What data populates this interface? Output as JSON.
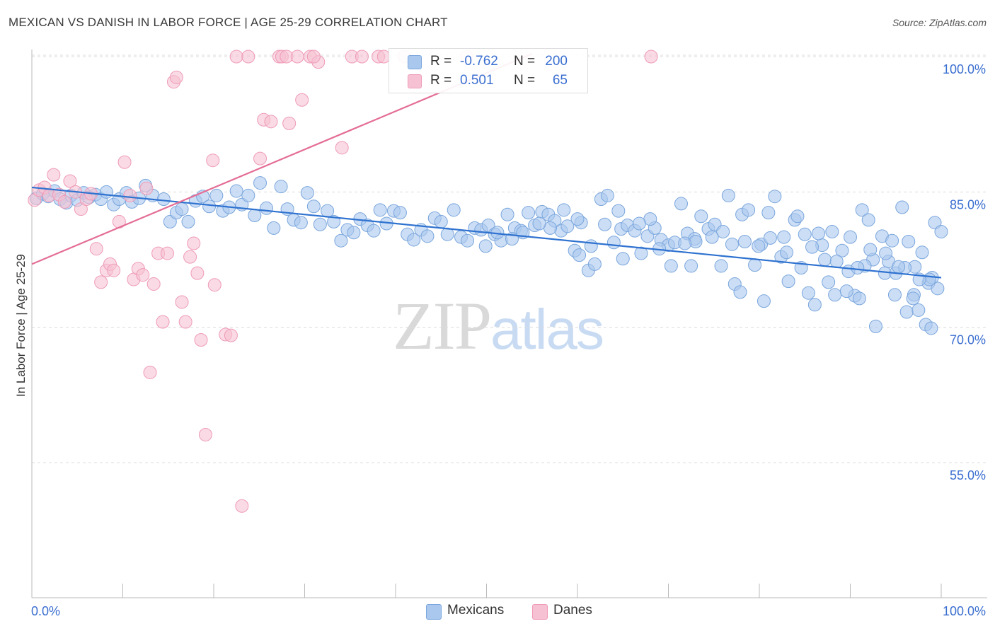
{
  "header": {
    "title": "MEXICAN VS DANISH IN LABOR FORCE | AGE 25-29 CORRELATION CHART",
    "source": "Source: ZipAtlas.com"
  },
  "watermark": {
    "zip": "ZIP",
    "atlas": "atlas"
  },
  "legend": {
    "r_label": "R =",
    "n_label": "N =",
    "mexicans": {
      "r": "-0.762",
      "n": "200"
    },
    "danes": {
      "r": "0.501",
      "n": "65"
    }
  },
  "bottom_legend": {
    "mexicans": "Mexicans",
    "danes": "Danes"
  },
  "colors": {
    "mexicans_fill": "#aac8ee",
    "mexicans_stroke": "#7aa6dd",
    "mexicans_line": "#2f72d0",
    "danes_fill": "#f6c1d2",
    "danes_stroke": "#ee9bb7",
    "danes_line": "#e46d96",
    "tick_label": "#3b6fd0"
  },
  "chart_data": {
    "type": "scatter",
    "title": "MEXICAN VS DANISH IN LABOR FORCE | AGE 25-29 CORRELATION CHART",
    "xlabel": "",
    "ylabel": "In Labor Force | Age 25-29",
    "xlim": [
      0,
      100
    ],
    "ylim": [
      40,
      101.5
    ],
    "x_tick_labels": [
      "0.0%",
      "100.0%"
    ],
    "y_ticks": [
      55,
      70,
      85,
      100
    ],
    "y_tick_labels": [
      "55.0%",
      "70.0%",
      "85.0%",
      "100.0%"
    ],
    "grid": true,
    "legend_position": "top-center",
    "series": [
      {
        "name": "Mexicans",
        "r": -0.762,
        "n": 200,
        "trend": {
          "x": [
            0,
            100
          ],
          "y": [
            85.5,
            75.5
          ]
        },
        "points": [
          [
            0.5,
            84.3
          ],
          [
            1.2,
            84.8
          ],
          [
            1.8,
            84.5
          ],
          [
            2.5,
            85.1
          ],
          [
            3.1,
            84.2
          ],
          [
            3.8,
            83.8
          ],
          [
            4.3,
            84.6
          ],
          [
            5.0,
            84.1
          ],
          [
            5.7,
            84.9
          ],
          [
            6.3,
            84.4
          ],
          [
            7.0,
            84.7
          ],
          [
            7.6,
            84.2
          ],
          [
            8.2,
            85.0
          ],
          [
            9.0,
            83.6
          ],
          [
            9.6,
            84.2
          ],
          [
            10.4,
            84.9
          ],
          [
            11.0,
            83.9
          ],
          [
            11.8,
            84.3
          ],
          [
            12.5,
            85.7
          ],
          [
            13.3,
            84.6
          ],
          [
            14.5,
            84.2
          ],
          [
            15.2,
            81.7
          ],
          [
            15.9,
            82.7
          ],
          [
            16.5,
            83.1
          ],
          [
            17.2,
            81.7
          ],
          [
            18.0,
            84.0
          ],
          [
            18.8,
            84.5
          ],
          [
            19.5,
            83.4
          ],
          [
            20.3,
            84.6
          ],
          [
            21.0,
            82.9
          ],
          [
            21.7,
            83.3
          ],
          [
            22.5,
            85.1
          ],
          [
            23.1,
            83.6
          ],
          [
            23.8,
            84.6
          ],
          [
            24.5,
            82.4
          ],
          [
            25.1,
            86.0
          ],
          [
            25.8,
            83.2
          ],
          [
            26.6,
            81.0
          ],
          [
            27.4,
            85.6
          ],
          [
            28.1,
            83.1
          ],
          [
            28.8,
            81.9
          ],
          [
            29.6,
            81.6
          ],
          [
            30.3,
            84.9
          ],
          [
            31.0,
            83.4
          ],
          [
            31.7,
            81.4
          ],
          [
            32.5,
            82.9
          ],
          [
            33.2,
            81.7
          ],
          [
            34.0,
            79.6
          ],
          [
            34.7,
            80.8
          ],
          [
            35.4,
            80.5
          ],
          [
            36.1,
            82.0
          ],
          [
            36.9,
            81.3
          ],
          [
            37.6,
            80.7
          ],
          [
            38.3,
            83.0
          ],
          [
            39.0,
            81.5
          ],
          [
            39.8,
            82.9
          ],
          [
            40.5,
            82.7
          ],
          [
            41.3,
            80.3
          ],
          [
            42.0,
            79.7
          ],
          [
            42.8,
            80.8
          ],
          [
            43.5,
            80.1
          ],
          [
            44.3,
            82.1
          ],
          [
            45.0,
            81.7
          ],
          [
            45.7,
            80.3
          ],
          [
            46.4,
            83.0
          ],
          [
            47.2,
            80.0
          ],
          [
            47.9,
            79.6
          ],
          [
            48.7,
            81.0
          ],
          [
            49.4,
            80.8
          ],
          [
            50.2,
            81.3
          ],
          [
            50.9,
            80.3
          ],
          [
            51.6,
            79.6
          ],
          [
            52.3,
            82.5
          ],
          [
            53.1,
            81.0
          ],
          [
            53.8,
            80.7
          ],
          [
            54.6,
            82.7
          ],
          [
            55.3,
            81.3
          ],
          [
            56.1,
            82.8
          ],
          [
            56.8,
            82.5
          ],
          [
            57.5,
            81.8
          ],
          [
            58.2,
            80.7
          ],
          [
            58.9,
            81.2
          ],
          [
            59.7,
            78.5
          ],
          [
            60.4,
            81.6
          ],
          [
            61.2,
            76.3
          ],
          [
            61.9,
            77.0
          ],
          [
            62.6,
            84.2
          ],
          [
            63.3,
            84.6
          ],
          [
            64.0,
            79.4
          ],
          [
            64.8,
            80.9
          ],
          [
            65.5,
            81.3
          ],
          [
            66.3,
            80.7
          ],
          [
            67.0,
            78.2
          ],
          [
            67.7,
            80.1
          ],
          [
            68.5,
            81.0
          ],
          [
            69.2,
            79.7
          ],
          [
            70.0,
            79.1
          ],
          [
            70.7,
            79.4
          ],
          [
            71.4,
            83.7
          ],
          [
            72.1,
            80.4
          ],
          [
            72.9,
            79.8
          ],
          [
            73.6,
            82.3
          ],
          [
            74.4,
            80.9
          ],
          [
            75.1,
            81.4
          ],
          [
            75.8,
            76.8
          ],
          [
            76.6,
            84.6
          ],
          [
            77.3,
            74.8
          ],
          [
            78.1,
            82.5
          ],
          [
            78.8,
            83.0
          ],
          [
            79.5,
            76.9
          ],
          [
            80.2,
            79.2
          ],
          [
            81.0,
            82.7
          ],
          [
            81.7,
            84.5
          ],
          [
            82.4,
            77.8
          ],
          [
            83.2,
            75.1
          ],
          [
            83.9,
            81.9
          ],
          [
            84.6,
            76.6
          ],
          [
            85.4,
            73.8
          ],
          [
            86.1,
            72.5
          ],
          [
            86.9,
            79.1
          ],
          [
            87.6,
            75.0
          ],
          [
            88.3,
            73.6
          ],
          [
            89.1,
            78.5
          ],
          [
            89.8,
            76.2
          ],
          [
            90.5,
            73.5
          ],
          [
            91.3,
            83.0
          ],
          [
            92.0,
            81.9
          ],
          [
            92.8,
            70.1
          ],
          [
            93.5,
            80.1
          ],
          [
            94.2,
            77.3
          ],
          [
            94.9,
            73.6
          ],
          [
            95.7,
            83.3
          ],
          [
            96.4,
            79.5
          ],
          [
            97.1,
            76.7
          ],
          [
            97.9,
            78.3
          ],
          [
            98.6,
            74.9
          ],
          [
            99.3,
            81.6
          ],
          [
            100.0,
            80.6
          ],
          [
            60.2,
            78.0
          ],
          [
            65.0,
            77.6
          ],
          [
            72.5,
            76.8
          ],
          [
            77.9,
            73.9
          ],
          [
            80.5,
            72.9
          ],
          [
            83.0,
            78.3
          ],
          [
            85.0,
            80.3
          ],
          [
            87.2,
            77.5
          ],
          [
            88.5,
            77.3
          ],
          [
            90.0,
            80.0
          ],
          [
            91.0,
            73.2
          ],
          [
            92.5,
            77.5
          ],
          [
            93.8,
            76.0
          ],
          [
            95.0,
            76.0
          ],
          [
            96.2,
            71.7
          ],
          [
            97.0,
            73.6
          ],
          [
            97.5,
            71.9
          ],
          [
            98.3,
            70.3
          ],
          [
            98.9,
            69.9
          ],
          [
            99.6,
            74.3
          ],
          [
            99.0,
            75.5
          ],
          [
            98.7,
            75.3
          ],
          [
            97.6,
            75.3
          ],
          [
            96.9,
            73.2
          ],
          [
            96.0,
            76.6
          ],
          [
            95.3,
            76.7
          ],
          [
            94.6,
            79.6
          ],
          [
            93.9,
            78.2
          ],
          [
            92.2,
            78.6
          ],
          [
            91.6,
            76.8
          ],
          [
            90.8,
            76.6
          ],
          [
            89.6,
            74.0
          ],
          [
            88.0,
            80.6
          ],
          [
            86.5,
            80.4
          ],
          [
            85.8,
            78.9
          ],
          [
            84.2,
            82.3
          ],
          [
            82.7,
            80.0
          ],
          [
            81.2,
            79.9
          ],
          [
            79.9,
            79.0
          ],
          [
            78.4,
            79.5
          ],
          [
            77.0,
            79.2
          ],
          [
            76.0,
            80.6
          ],
          [
            74.8,
            80.0
          ],
          [
            73.0,
            79.5
          ],
          [
            71.8,
            79.3
          ],
          [
            70.3,
            76.8
          ],
          [
            69.0,
            78.7
          ],
          [
            68.0,
            82.0
          ],
          [
            66.8,
            81.5
          ],
          [
            64.5,
            82.9
          ],
          [
            63.0,
            81.4
          ],
          [
            61.5,
            79.0
          ],
          [
            60.0,
            82.0
          ],
          [
            58.5,
            83.0
          ],
          [
            57.0,
            81.0
          ],
          [
            55.8,
            81.5
          ],
          [
            54.0,
            80.5
          ],
          [
            52.8,
            79.8
          ],
          [
            51.2,
            80.5
          ],
          [
            49.9,
            79.0
          ]
        ]
      },
      {
        "name": "Danes",
        "r": 0.501,
        "n": 65,
        "trend": {
          "x": [
            0,
            55
          ],
          "y": [
            77.0,
            100.3
          ]
        },
        "points": [
          [
            0.3,
            84.1
          ],
          [
            0.8,
            85.2
          ],
          [
            1.4,
            85.5
          ],
          [
            1.9,
            84.6
          ],
          [
            2.4,
            86.9
          ],
          [
            3.0,
            84.7
          ],
          [
            3.6,
            83.9
          ],
          [
            4.2,
            86.2
          ],
          [
            4.8,
            85.0
          ],
          [
            5.4,
            83.1
          ],
          [
            6.0,
            84.2
          ],
          [
            6.5,
            84.8
          ],
          [
            7.1,
            78.7
          ],
          [
            7.6,
            75.0
          ],
          [
            8.2,
            76.3
          ],
          [
            8.6,
            77.0
          ],
          [
            9.0,
            76.3
          ],
          [
            9.6,
            81.7
          ],
          [
            10.2,
            88.3
          ],
          [
            10.8,
            84.6
          ],
          [
            11.2,
            75.3
          ],
          [
            11.7,
            76.5
          ],
          [
            12.2,
            75.8
          ],
          [
            12.6,
            85.4
          ],
          [
            13.0,
            65.0
          ],
          [
            13.4,
            74.8
          ],
          [
            13.9,
            78.2
          ],
          [
            14.4,
            70.6
          ],
          [
            14.9,
            78.2
          ],
          [
            15.6,
            97.2
          ],
          [
            15.9,
            97.7
          ],
          [
            16.5,
            72.8
          ],
          [
            16.9,
            70.6
          ],
          [
            17.4,
            77.8
          ],
          [
            17.8,
            79.3
          ],
          [
            18.2,
            76.0
          ],
          [
            18.6,
            68.6
          ],
          [
            19.1,
            58.1
          ],
          [
            19.9,
            88.5
          ],
          [
            20.1,
            74.7
          ],
          [
            21.3,
            69.2
          ],
          [
            21.9,
            69.1
          ],
          [
            22.5,
            100.0
          ],
          [
            23.1,
            50.2
          ],
          [
            23.8,
            100.0
          ],
          [
            25.1,
            88.7
          ],
          [
            25.5,
            93.0
          ],
          [
            26.3,
            92.8
          ],
          [
            27.2,
            100.0
          ],
          [
            27.5,
            100.0
          ],
          [
            28.0,
            100.0
          ],
          [
            28.3,
            92.6
          ],
          [
            29.2,
            100.0
          ],
          [
            29.7,
            95.2
          ],
          [
            30.6,
            100.0
          ],
          [
            31.5,
            99.4
          ],
          [
            31.0,
            100.0
          ],
          [
            34.1,
            89.9
          ],
          [
            35.2,
            100.0
          ],
          [
            36.3,
            100.0
          ],
          [
            38.1,
            100.0
          ],
          [
            38.7,
            100.0
          ],
          [
            41.0,
            100.0
          ],
          [
            47.8,
            100.0
          ],
          [
            68.1,
            100.0
          ]
        ]
      }
    ]
  }
}
